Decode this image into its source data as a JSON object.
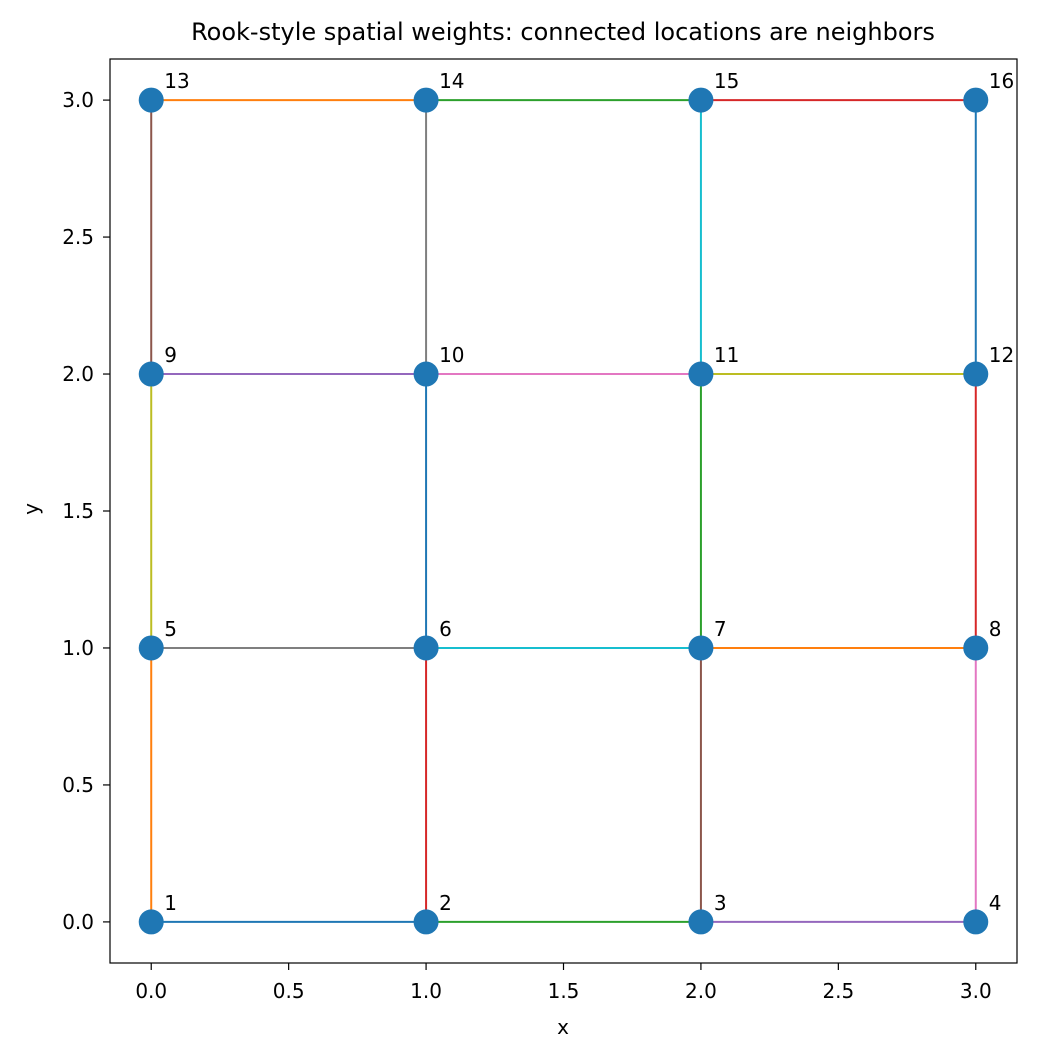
{
  "chart_data": {
    "type": "scatter",
    "title": "Rook-style spatial weights: connected locations are neighbors",
    "xlabel": "x",
    "ylabel": "y",
    "xlim": [
      -0.15,
      3.15
    ],
    "ylim": [
      -0.15,
      3.15
    ],
    "x_ticks": [
      0.0,
      0.5,
      1.0,
      1.5,
      2.0,
      2.5,
      3.0
    ],
    "x_tick_labels": [
      "0.0",
      "0.5",
      "1.0",
      "1.5",
      "2.0",
      "2.5",
      "3.0"
    ],
    "y_ticks": [
      0.0,
      0.5,
      1.0,
      1.5,
      2.0,
      2.5,
      3.0
    ],
    "y_tick_labels": [
      "0.0",
      "0.5",
      "1.0",
      "1.5",
      "2.0",
      "2.5",
      "3.0"
    ],
    "grid": false,
    "point_color": "#1f77b4",
    "points": [
      {
        "label": "1",
        "x": 0,
        "y": 0
      },
      {
        "label": "2",
        "x": 1,
        "y": 0
      },
      {
        "label": "3",
        "x": 2,
        "y": 0
      },
      {
        "label": "4",
        "x": 3,
        "y": 0
      },
      {
        "label": "5",
        "x": 0,
        "y": 1
      },
      {
        "label": "6",
        "x": 1,
        "y": 1
      },
      {
        "label": "7",
        "x": 2,
        "y": 1
      },
      {
        "label": "8",
        "x": 3,
        "y": 1
      },
      {
        "label": "9",
        "x": 0,
        "y": 2
      },
      {
        "label": "10",
        "x": 1,
        "y": 2
      },
      {
        "label": "11",
        "x": 2,
        "y": 2
      },
      {
        "label": "12",
        "x": 3,
        "y": 2
      },
      {
        "label": "13",
        "x": 0,
        "y": 3
      },
      {
        "label": "14",
        "x": 1,
        "y": 3
      },
      {
        "label": "15",
        "x": 2,
        "y": 3
      },
      {
        "label": "16",
        "x": 3,
        "y": 3
      }
    ],
    "edges": [
      {
        "from": "1",
        "to": "2",
        "color": "#1f77b4"
      },
      {
        "from": "1",
        "to": "5",
        "color": "#ff7f0e"
      },
      {
        "from": "2",
        "to": "3",
        "color": "#2ca02c"
      },
      {
        "from": "2",
        "to": "6",
        "color": "#d62728"
      },
      {
        "from": "3",
        "to": "4",
        "color": "#9467bd"
      },
      {
        "from": "3",
        "to": "7",
        "color": "#8c564b"
      },
      {
        "from": "4",
        "to": "8",
        "color": "#e377c2"
      },
      {
        "from": "5",
        "to": "6",
        "color": "#7f7f7f"
      },
      {
        "from": "5",
        "to": "9",
        "color": "#bcbd22"
      },
      {
        "from": "6",
        "to": "7",
        "color": "#17becf"
      },
      {
        "from": "6",
        "to": "10",
        "color": "#1f77b4"
      },
      {
        "from": "7",
        "to": "8",
        "color": "#ff7f0e"
      },
      {
        "from": "7",
        "to": "11",
        "color": "#2ca02c"
      },
      {
        "from": "8",
        "to": "12",
        "color": "#d62728"
      },
      {
        "from": "9",
        "to": "10",
        "color": "#9467bd"
      },
      {
        "from": "9",
        "to": "13",
        "color": "#8c564b"
      },
      {
        "from": "10",
        "to": "11",
        "color": "#e377c2"
      },
      {
        "from": "10",
        "to": "14",
        "color": "#7f7f7f"
      },
      {
        "from": "11",
        "to": "12",
        "color": "#bcbd22"
      },
      {
        "from": "11",
        "to": "15",
        "color": "#17becf"
      },
      {
        "from": "12",
        "to": "16",
        "color": "#1f77b4"
      },
      {
        "from": "13",
        "to": "14",
        "color": "#ff7f0e"
      },
      {
        "from": "14",
        "to": "15",
        "color": "#2ca02c"
      },
      {
        "from": "15",
        "to": "16",
        "color": "#d62728"
      }
    ]
  }
}
